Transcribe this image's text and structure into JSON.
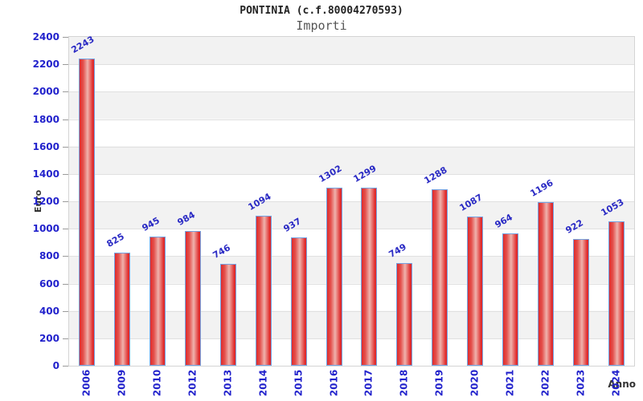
{
  "header": {
    "title": "PONTINIA (c.f.80004270593)",
    "subtitle": "Importi"
  },
  "chart_data": {
    "type": "bar",
    "title": "PONTINIA (c.f.80004270593)",
    "subtitle": "Importi",
    "xlabel": "Anno",
    "ylabel": "Euro",
    "categories": [
      "2006",
      "2009",
      "2010",
      "2012",
      "2013",
      "2014",
      "2015",
      "2016",
      "2017",
      "2018",
      "2019",
      "2020",
      "2021",
      "2022",
      "2023",
      "2024"
    ],
    "values": [
      2243,
      825,
      945,
      984,
      746,
      1094,
      937,
      1302,
      1299,
      749,
      1288,
      1087,
      964,
      1196,
      922,
      1053
    ],
    "ylim": [
      0,
      2400
    ],
    "yticks": [
      0,
      200,
      400,
      600,
      800,
      1000,
      1200,
      1400,
      1600,
      1800,
      2000,
      2200,
      2400
    ],
    "grid": true,
    "legend": false,
    "colors": {
      "tick_text": "#2222cc",
      "value_text": "#2a2ac4",
      "band_gray": "#f2f2f2",
      "band_white": "#ffffff",
      "gridline": "#e0e0e0",
      "bar_edge_red": "#e02b2b",
      "bar_mid_light": "#efb3ad",
      "bar_border": "#74a3e3",
      "plot_border": "#d4d4d4"
    }
  }
}
